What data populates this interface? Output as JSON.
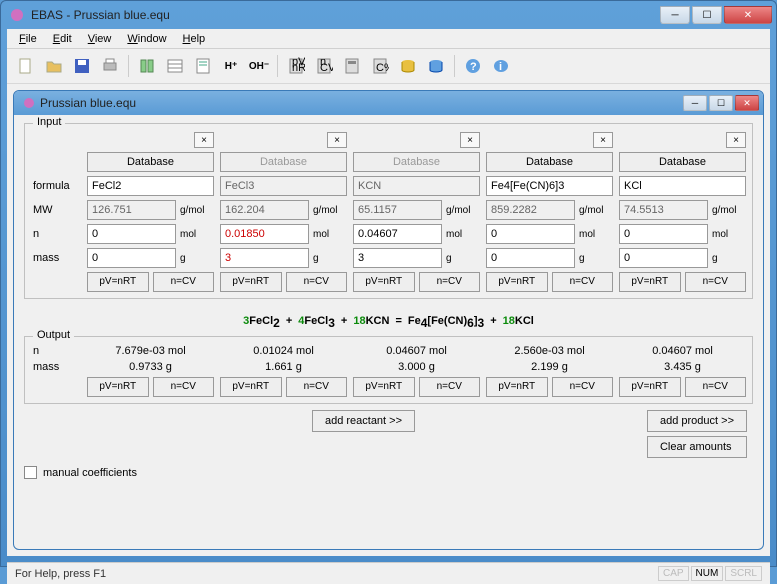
{
  "window": {
    "title": "EBAS - Prussian blue.equ"
  },
  "menu": {
    "file": "File",
    "edit": "Edit",
    "view": "View",
    "window": "Window",
    "help": "Help"
  },
  "child": {
    "title": "Prussian blue.equ"
  },
  "input": {
    "legend": "Input",
    "close_label": "×",
    "db_label": "Database",
    "labels": {
      "formula": "formula",
      "mw": "MW",
      "n": "n",
      "mass": "mass"
    },
    "units": {
      "mw": "g/mol",
      "n": "mol",
      "mass": "g"
    },
    "btn": {
      "pv": "pV=nRT",
      "ncv": "n=CV"
    },
    "cols": [
      {
        "enabled": true,
        "formula": "FeCl2",
        "mw": "126.751",
        "n": "0",
        "mass": "0"
      },
      {
        "enabled": false,
        "formula": "FeCl3",
        "mw": "162.204",
        "n": "0.01850",
        "n_red": true,
        "mass": "3",
        "mass_red": true
      },
      {
        "enabled": false,
        "formula": "KCN",
        "mw": "65.1157",
        "n": "0.04607",
        "mass": "3"
      },
      {
        "enabled": true,
        "formula": "Fe4[Fe(CN)6]3",
        "mw": "859.2282",
        "n": "0",
        "mass": "0"
      },
      {
        "enabled": true,
        "formula": "KCl",
        "mw": "74.5513",
        "n": "0",
        "mass": "0"
      }
    ]
  },
  "equation": {
    "terms": [
      {
        "coef": "3",
        "body": "FeCl",
        "sub": "2",
        "after": ""
      },
      {
        "op": "+"
      },
      {
        "coef": "4",
        "body": "FeCl",
        "sub": "3",
        "after": ""
      },
      {
        "op": "+"
      },
      {
        "coef": "18",
        "body": "KCN",
        "sub": "",
        "after": ""
      },
      {
        "op": "="
      },
      {
        "coef": "",
        "body": "Fe",
        "sub": "4",
        "after": "[Fe(CN)",
        "sub2": "6",
        "after2": "]",
        "sub3": "3"
      },
      {
        "op": "+"
      },
      {
        "coef": "18",
        "body": "KCl",
        "sub": "",
        "after": ""
      }
    ]
  },
  "output": {
    "legend": "Output",
    "labels": {
      "n": "n",
      "mass": "mass"
    },
    "btn": {
      "pv": "pV=nRT",
      "ncv": "n=CV"
    },
    "cols": [
      {
        "n": "7.679e-03 mol",
        "mass": "0.9733 g"
      },
      {
        "n": "0.01024 mol",
        "mass": "1.661 g"
      },
      {
        "n": "0.04607 mol",
        "mass": "3.000 g"
      },
      {
        "n": "2.560e-03 mol",
        "mass": "2.199 g"
      },
      {
        "n": "0.04607 mol",
        "mass": "3.435 g"
      }
    ]
  },
  "buttons": {
    "add_reactant": "add reactant >>",
    "add_product": "add product >>",
    "clear": "Clear amounts",
    "manual": "manual coefficients"
  },
  "status": {
    "text": "For Help, press F1",
    "cap": "CAP",
    "num": "NUM",
    "scrl": "SCRL"
  },
  "colors": {
    "coef": "#0a8a0a",
    "red": "#cc0000",
    "frame": "#5a9bd5"
  }
}
